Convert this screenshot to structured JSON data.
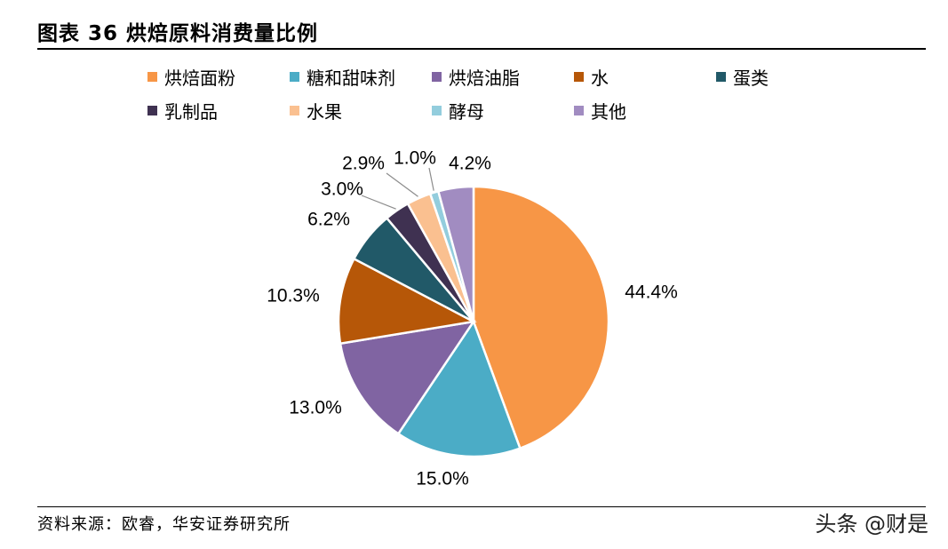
{
  "header": {
    "title": "图表 36 烘焙原料消费量比例"
  },
  "chart_data": {
    "type": "pie",
    "title": "",
    "unit": "%",
    "slices": [
      {
        "label": "烘焙面粉",
        "value": 44.4,
        "display": "44.4%",
        "color": "#F79646"
      },
      {
        "label": "糖和甜味剂",
        "value": 15.0,
        "display": "15.0%",
        "color": "#4BACC6"
      },
      {
        "label": "烘焙油脂",
        "value": 13.0,
        "display": "13.0%",
        "color": "#8064A2"
      },
      {
        "label": "水",
        "value": 10.3,
        "display": "10.3%",
        "color": "#B65708"
      },
      {
        "label": "蛋类",
        "value": 6.2,
        "display": "6.2%",
        "color": "#215968"
      },
      {
        "label": "乳制品",
        "value": 3.0,
        "display": "3.0%",
        "color": "#3F3151"
      },
      {
        "label": "水果",
        "value": 2.9,
        "display": "2.9%",
        "color": "#FAC090"
      },
      {
        "label": "酵母",
        "value": 1.0,
        "display": "1.0%",
        "color": "#93CDDD"
      },
      {
        "label": "其他",
        "value": 4.2,
        "display": "4.2%",
        "color": "#A18CC1"
      }
    ],
    "legend_position": "top"
  },
  "footer": {
    "source": "资料来源：欧睿，华安证券研究所",
    "watermark": "头条 @财是"
  }
}
